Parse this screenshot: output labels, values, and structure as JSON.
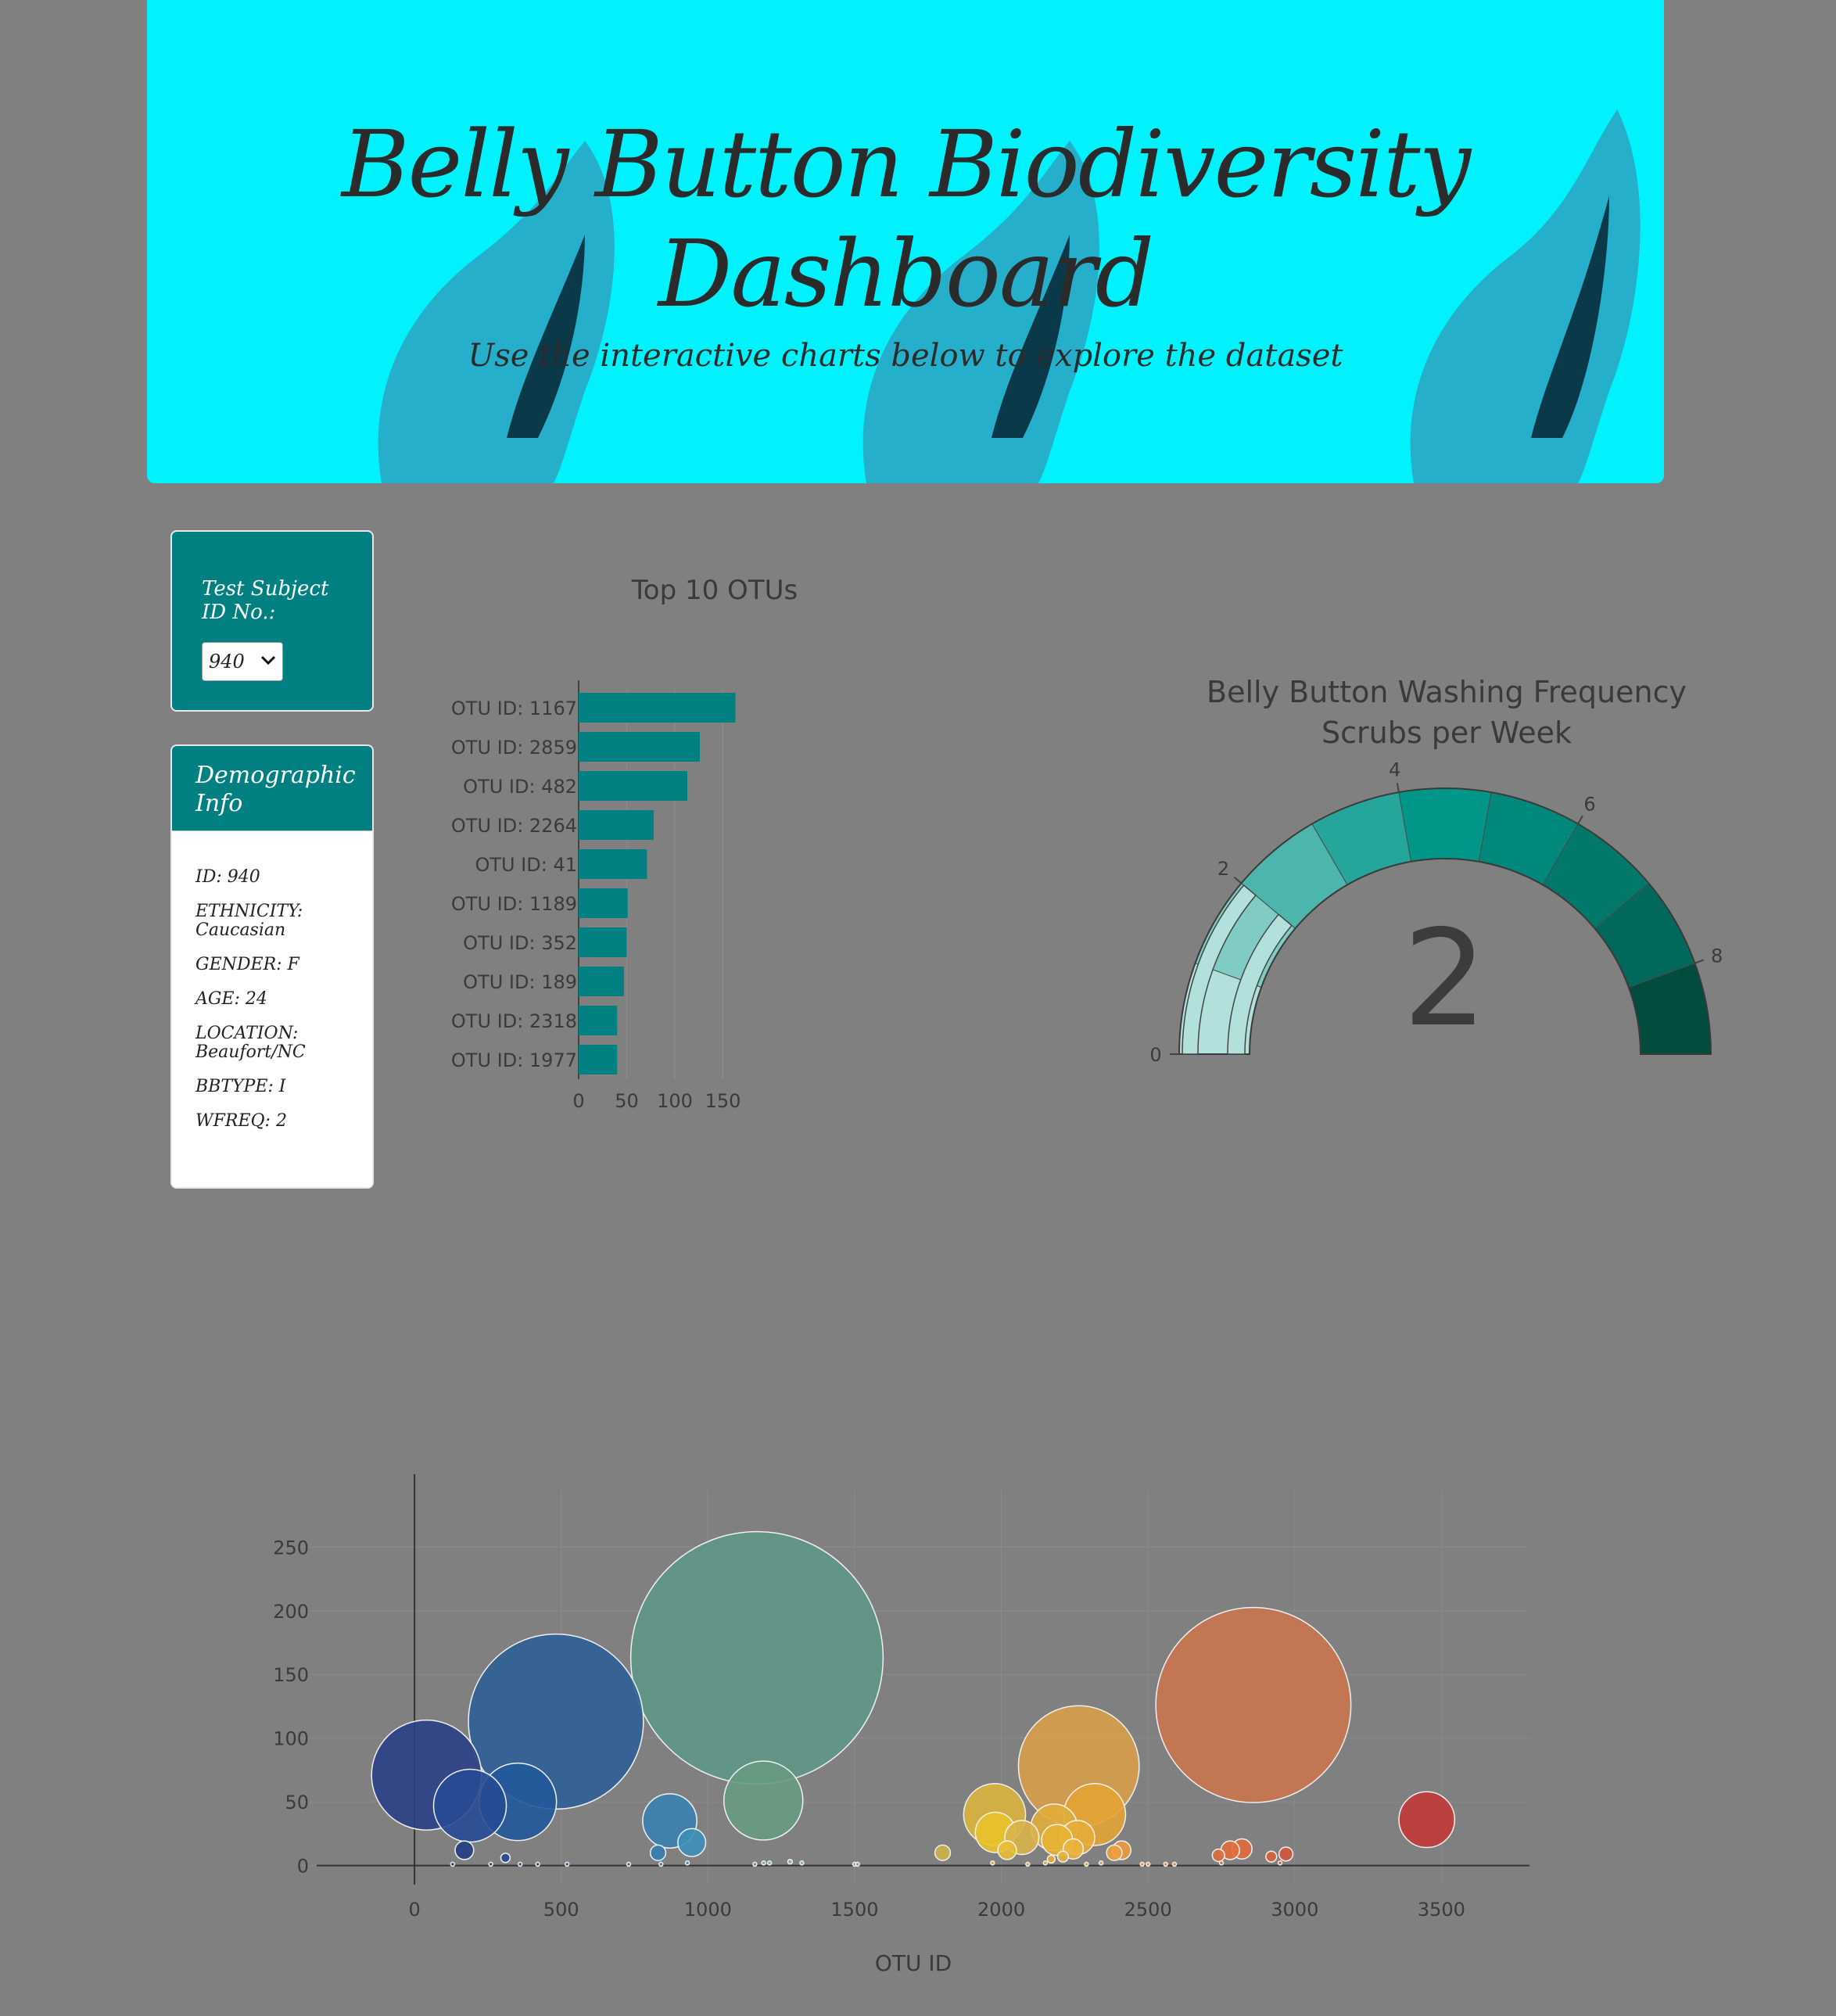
{
  "header": {
    "title_line1": "Belly Button Biodiversity",
    "title_line2": "Dashboard",
    "subtitle": "Use the interactive charts below to explore the dataset"
  },
  "selector": {
    "label": "Test Subject ID No.:",
    "value": "940"
  },
  "demographics": {
    "heading": "Demographic Info",
    "rows": [
      "ID: 940",
      "ETHNICITY: Caucasian",
      "GENDER: F",
      "AGE: 24",
      "LOCATION: Beaufort/NC",
      "BBTYPE: I",
      "WFREQ: 2"
    ]
  },
  "colors": {
    "background": "#808080",
    "banner": "#00f3fc",
    "teal": "#008080"
  },
  "chart_data": [
    {
      "type": "bar",
      "orientation": "horizontal",
      "title": "Top 10 OTUs",
      "categories": [
        "OTU ID: 1167",
        "OTU ID: 2859",
        "OTU ID: 482",
        "OTU ID: 2264",
        "OTU ID: 41",
        "OTU ID: 1189",
        "OTU ID: 352",
        "OTU ID: 189",
        "OTU ID: 2318",
        "OTU ID: 1977"
      ],
      "values": [
        163,
        126,
        113,
        78,
        71,
        51,
        50,
        47,
        40,
        40
      ],
      "xlim": [
        0,
        165
      ],
      "xticks": [
        0,
        50,
        100,
        150
      ],
      "color": "#008080"
    },
    {
      "type": "gauge",
      "title_line1": "Belly Button Washing Frequency",
      "title_line2": "Scrubs per Week",
      "value": 2,
      "range": [
        0,
        9
      ],
      "ticks": [
        0,
        2,
        4,
        6,
        8
      ],
      "step_colors": [
        "#b2e0dc",
        "#80cbc4",
        "#4db6ac",
        "#26a69a",
        "#009688",
        "#00897b",
        "#00796b",
        "#00695c",
        "#004d40"
      ]
    },
    {
      "type": "scatter",
      "subtype": "bubble",
      "xlabel": "OTU ID",
      "xlim": [
        -400,
        3800
      ],
      "ylim": [
        -15,
        295
      ],
      "xticks": [
        0,
        500,
        1000,
        1500,
        2000,
        2500,
        3000,
        3500
      ],
      "yticks": [
        0,
        50,
        100,
        150,
        200,
        250
      ],
      "points": [
        {
          "x": 41,
          "y": 71,
          "c": "#2a3f86"
        },
        {
          "x": 189,
          "y": 47,
          "c": "#264a94"
        },
        {
          "x": 352,
          "y": 50,
          "c": "#22589a"
        },
        {
          "x": 482,
          "y": 113,
          "c": "#2e5f96"
        },
        {
          "x": 1167,
          "y": 163,
          "c": "#5e9688"
        },
        {
          "x": 1189,
          "y": 51,
          "c": "#679a80"
        },
        {
          "x": 870,
          "y": 35,
          "c": "#3a82b0"
        },
        {
          "x": 945,
          "y": 18,
          "c": "#3d8fb8"
        },
        {
          "x": 170,
          "y": 12,
          "c": "#223c84"
        },
        {
          "x": 310,
          "y": 6,
          "c": "#24488e"
        },
        {
          "x": 830,
          "y": 10,
          "c": "#3280b0"
        },
        {
          "x": 2264,
          "y": 78,
          "c": "#d79d48"
        },
        {
          "x": 2318,
          "y": 40,
          "c": "#e3a336"
        },
        {
          "x": 1977,
          "y": 40,
          "c": "#dab43e"
        },
        {
          "x": 1980,
          "y": 26,
          "c": "#e8c22a"
        },
        {
          "x": 2070,
          "y": 22,
          "c": "#d9b44a"
        },
        {
          "x": 2180,
          "y": 30,
          "c": "#e0ad3a"
        },
        {
          "x": 2190,
          "y": 20,
          "c": "#e8b233"
        },
        {
          "x": 2260,
          "y": 22,
          "c": "#e6ac38"
        },
        {
          "x": 2245,
          "y": 13,
          "c": "#ebb33a"
        },
        {
          "x": 2020,
          "y": 12,
          "c": "#e8be33"
        },
        {
          "x": 2410,
          "y": 12,
          "c": "#ed9b3a"
        },
        {
          "x": 2385,
          "y": 10,
          "c": "#ec9e3a"
        },
        {
          "x": 1800,
          "y": 10,
          "c": "#cbb24a"
        },
        {
          "x": 2859,
          "y": 126,
          "c": "#ca744f"
        },
        {
          "x": 3450,
          "y": 36,
          "c": "#c03a38"
        },
        {
          "x": 2780,
          "y": 12,
          "c": "#e26c3c"
        },
        {
          "x": 2820,
          "y": 13,
          "c": "#e06a3a"
        },
        {
          "x": 2740,
          "y": 8,
          "c": "#dd6b3e"
        },
        {
          "x": 2970,
          "y": 9,
          "c": "#d4543a"
        },
        {
          "x": 2920,
          "y": 7,
          "c": "#d8603a"
        },
        {
          "x": 2170,
          "y": 5,
          "c": "#e9ad38"
        },
        {
          "x": 2210,
          "y": 7,
          "c": "#e6b33c"
        },
        {
          "x": 1190,
          "y": 2,
          "c": "#7fb09e"
        },
        {
          "x": 1210,
          "y": 2,
          "c": "#7fb09e"
        },
        {
          "x": 1280,
          "y": 3,
          "c": "#8ab8a2"
        },
        {
          "x": 1320,
          "y": 2,
          "c": "#8ab8a2"
        },
        {
          "x": 930,
          "y": 2,
          "c": "#4a90b8"
        },
        {
          "x": 130,
          "y": 1,
          "c": "#2a3f86"
        },
        {
          "x": 260,
          "y": 1,
          "c": "#25478e"
        },
        {
          "x": 360,
          "y": 1,
          "c": "#22589a"
        },
        {
          "x": 420,
          "y": 1,
          "c": "#22589a"
        },
        {
          "x": 520,
          "y": 1,
          "c": "#2e5f96"
        },
        {
          "x": 730,
          "y": 1,
          "c": "#3a74a4"
        },
        {
          "x": 840,
          "y": 1,
          "c": "#3a82b0"
        },
        {
          "x": 1160,
          "y": 1,
          "c": "#6a9c88"
        },
        {
          "x": 1500,
          "y": 1,
          "c": "#8aa89a"
        },
        {
          "x": 1510,
          "y": 1,
          "c": "#8aa89a"
        },
        {
          "x": 1970,
          "y": 2,
          "c": "#dab43e"
        },
        {
          "x": 2090,
          "y": 1,
          "c": "#d9b44a"
        },
        {
          "x": 2150,
          "y": 2,
          "c": "#e0ad3a"
        },
        {
          "x": 2290,
          "y": 1,
          "c": "#e6ac38"
        },
        {
          "x": 2340,
          "y": 2,
          "c": "#ec9e3a"
        },
        {
          "x": 2480,
          "y": 1,
          "c": "#ee9c3a"
        },
        {
          "x": 2500,
          "y": 1,
          "c": "#ee9c3a"
        },
        {
          "x": 2560,
          "y": 1,
          "c": "#ed923a"
        },
        {
          "x": 2590,
          "y": 1,
          "c": "#ed923a"
        },
        {
          "x": 2750,
          "y": 2,
          "c": "#dd6b3e"
        },
        {
          "x": 2950,
          "y": 2,
          "c": "#d8603a"
        }
      ]
    }
  ]
}
